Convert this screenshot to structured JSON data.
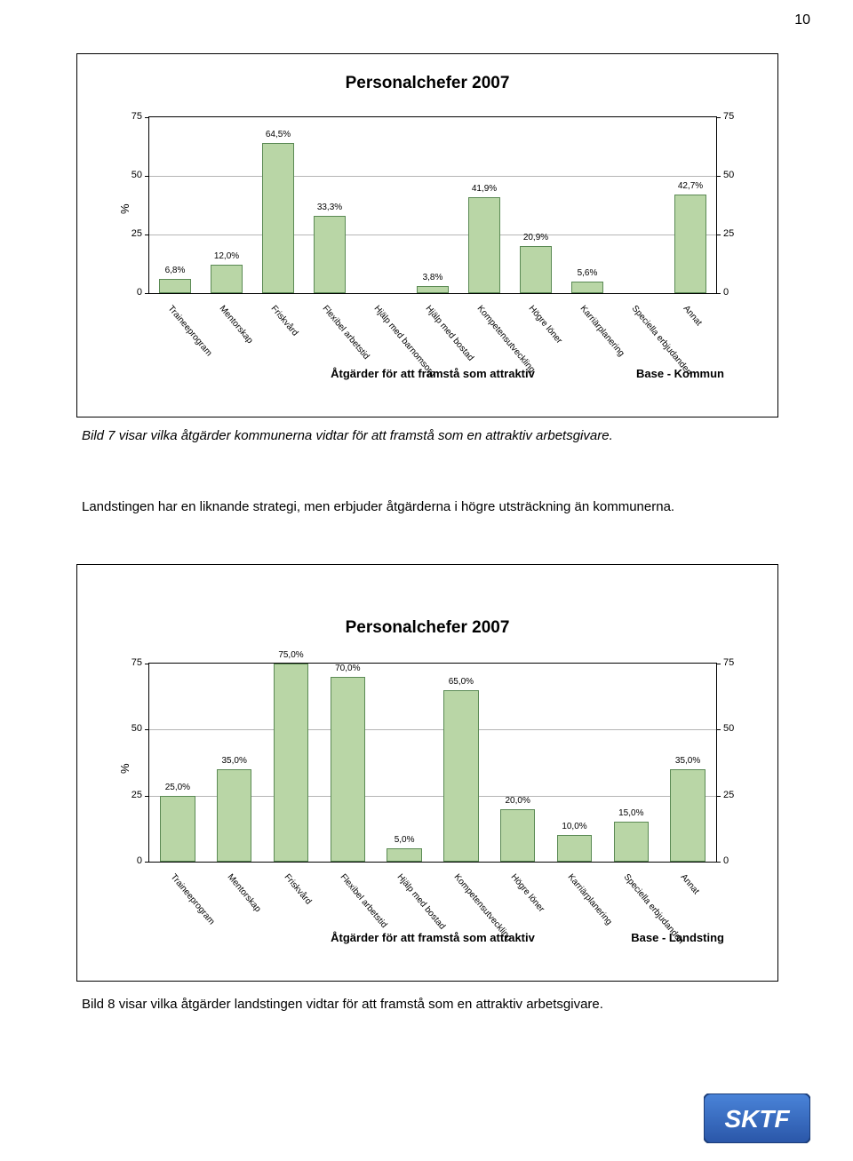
{
  "page_number": "10",
  "chart1": {
    "title": "Personalchefer 2007",
    "y_unit": "%",
    "y_ticks": [
      0,
      25,
      50,
      75
    ],
    "x_axis_title": "Åtgärder för att framstå som attraktiv",
    "base_label": "Base - Kommun",
    "bar_fill": "#b9d6a6",
    "bar_stroke": "#5b8a54",
    "grid_color": "#b5b5b5",
    "categories": [
      "Traineeprogram",
      "Mentorskap",
      "Friskvård",
      "Flexibel arbetstid",
      "Hjälp med barnomsorg",
      "Hjälp med bostad",
      "Kompetensutveckling",
      "Högre löner",
      "Karriärplanering",
      "Speciella erbjudanden",
      "Annat"
    ],
    "values": [
      6.8,
      12.0,
      64.5,
      33.3,
      3.8,
      41.9,
      20.9,
      5.6,
      42.7
    ],
    "value_labels": [
      "6,8%",
      "12,0%",
      "64,5%",
      "33,3%",
      "",
      "3,8%",
      "41,9%",
      "20,9%",
      "5,6%",
      "",
      "42,7%"
    ],
    "bar_indices_with_data": [
      0,
      1,
      2,
      3,
      5,
      6,
      7,
      8,
      10
    ]
  },
  "caption1": "Bild 7 visar vilka åtgärder kommunerna vidtar för att framstå som en attraktiv arbetsgivare.",
  "mid_text": "Landstingen har en liknande strategi, men erbjuder åtgärderna i högre utsträckning än kommunerna.",
  "chart2": {
    "title": "Personalchefer 2007",
    "y_unit": "%",
    "y_ticks": [
      0,
      25,
      50,
      75
    ],
    "x_axis_title": "Åtgärder för att framstå som attraktiv",
    "base_label": "Base - Landsting",
    "bar_fill": "#b9d6a6",
    "bar_stroke": "#5b8a54",
    "grid_color": "#b5b5b5",
    "categories": [
      "Traineeprogram",
      "Mentorskap",
      "Friskvård",
      "Flexibel arbetstid",
      "Hjälp med bostad",
      "Kompetensutveckling",
      "Högre löner",
      "Karriärplanering",
      "Speciella erbjudanden",
      "Annat"
    ],
    "value_labels": [
      "25,0%",
      "35,0%",
      "75,0%",
      "70,0%",
      "5,0%",
      "65,0%",
      "20,0%",
      "10,0%",
      "15,0%",
      "35,0%"
    ],
    "values": [
      25.0,
      35.0,
      75.0,
      70.0,
      5.0,
      65.0,
      20.0,
      10.0,
      15.0,
      35.0
    ]
  },
  "caption2": "Bild 8 visar vilka åtgärder landstingen vidtar för att framstå som en attraktiv arbetsgivare.",
  "logo": {
    "text": "SKTF",
    "bg_top": "#3a6fc9",
    "bg_bottom": "#2a56a8",
    "text_color": "#ffffff"
  }
}
